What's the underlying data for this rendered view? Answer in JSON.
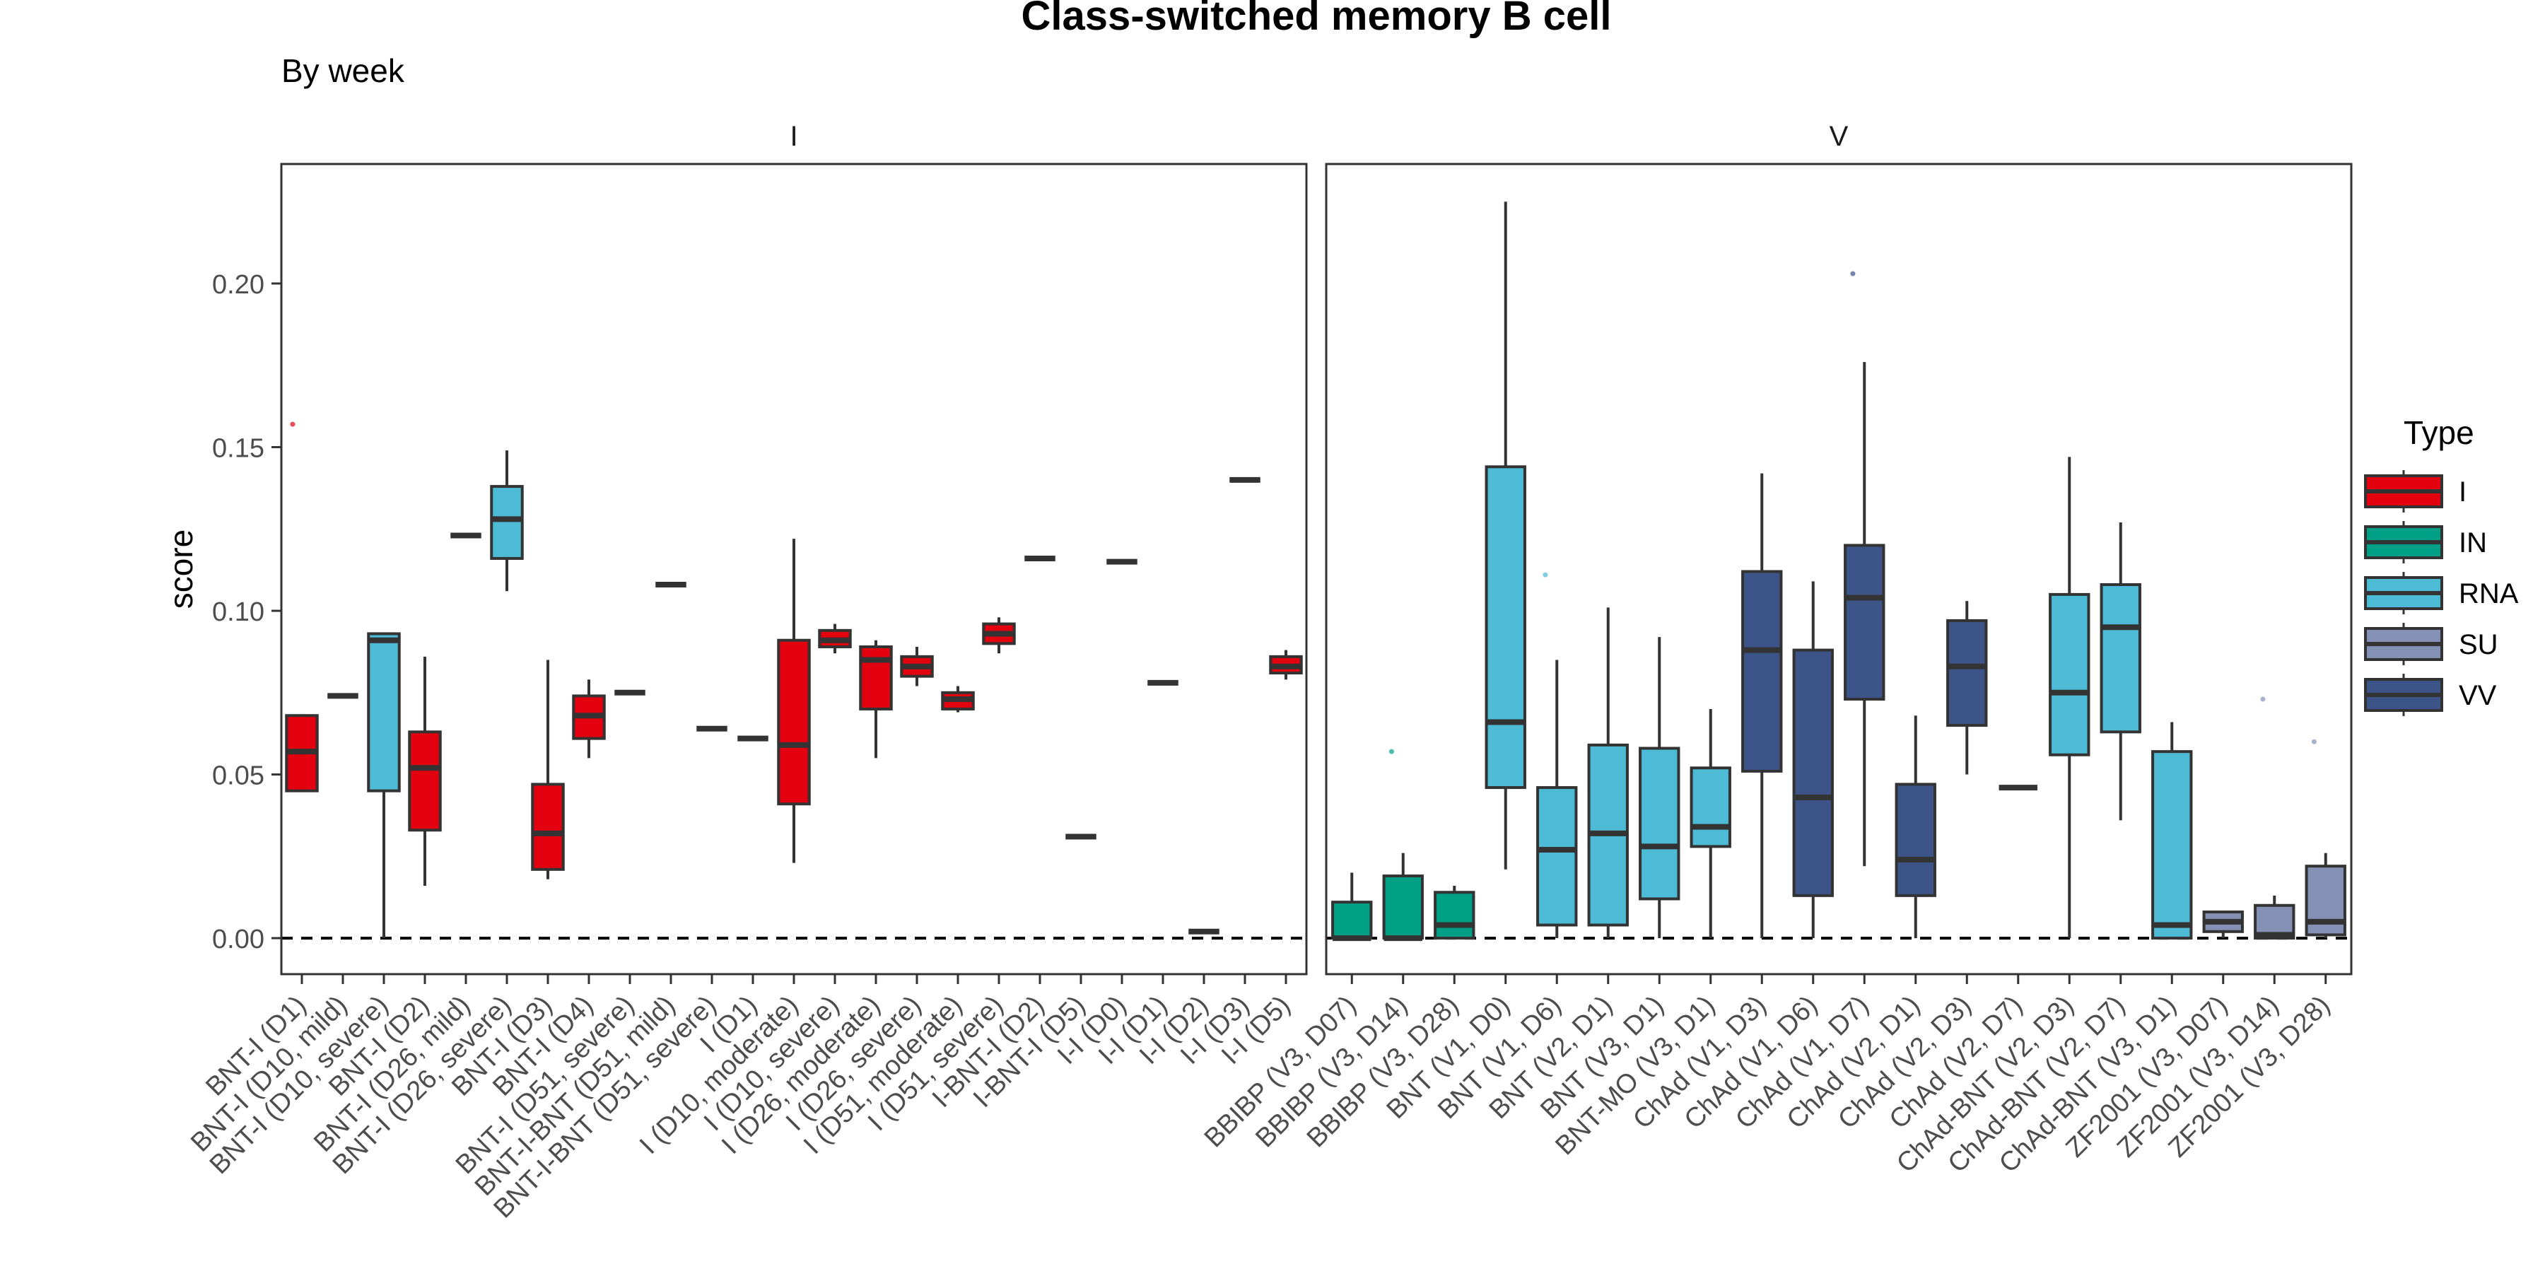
{
  "chart_data": {
    "type": "box",
    "title": "Class-switched memory B cell",
    "subtitle": "By week",
    "ylabel": "score",
    "ylim": [
      -0.011,
      0.2365
    ],
    "yticks": [
      0.0,
      0.05,
      0.1,
      0.15,
      0.2
    ],
    "ytick_labels": [
      "0.00",
      "0.05",
      "0.10",
      "0.15",
      "0.20"
    ],
    "reference_line": 0.0,
    "legend": {
      "title": "Type",
      "position": "right",
      "entries": [
        {
          "label": "I",
          "color": "#e3000f"
        },
        {
          "label": "IN",
          "color": "#00a087"
        },
        {
          "label": "RNA",
          "color": "#4dbbd5"
        },
        {
          "label": "SU",
          "color": "#8491b4"
        },
        {
          "label": "VV",
          "color": "#3c5488"
        }
      ]
    },
    "panels": [
      {
        "strip": "I",
        "groups": [
          {
            "label": "BNT-I (D1)",
            "type": "I",
            "lw": 0.045,
            "q1": 0.045,
            "med": 0.057,
            "q3": 0.068,
            "uw": 0.068,
            "outliers": [
              0.157
            ]
          },
          {
            "label": "BNT-I (D10, mild)",
            "type": "I",
            "lw": 0.074,
            "q1": 0.074,
            "med": 0.074,
            "q3": 0.074,
            "uw": 0.074,
            "outliers": []
          },
          {
            "label": "BNT-I (D10, severe)",
            "type": "RNA",
            "lw": 0.0,
            "q1": 0.045,
            "med": 0.091,
            "q3": 0.093,
            "uw": 0.093,
            "outliers": []
          },
          {
            "label": "BNT-I (D2)",
            "type": "I",
            "lw": 0.016,
            "q1": 0.033,
            "med": 0.052,
            "q3": 0.063,
            "uw": 0.086,
            "outliers": []
          },
          {
            "label": "BNT-I (D26, mild)",
            "type": "I",
            "lw": 0.123,
            "q1": 0.123,
            "med": 0.123,
            "q3": 0.123,
            "uw": 0.123,
            "outliers": []
          },
          {
            "label": "BNT-I (D26, severe)",
            "type": "RNA",
            "lw": 0.106,
            "q1": 0.116,
            "med": 0.128,
            "q3": 0.138,
            "uw": 0.149,
            "outliers": []
          },
          {
            "label": "BNT-I (D3)",
            "type": "I",
            "lw": 0.018,
            "q1": 0.021,
            "med": 0.032,
            "q3": 0.047,
            "uw": 0.085,
            "outliers": []
          },
          {
            "label": "BNT-I (D4)",
            "type": "I",
            "lw": 0.055,
            "q1": 0.061,
            "med": 0.068,
            "q3": 0.074,
            "uw": 0.079,
            "outliers": []
          },
          {
            "label": "BNT-I (D51, severe)",
            "type": "I",
            "lw": 0.075,
            "q1": 0.075,
            "med": 0.075,
            "q3": 0.075,
            "uw": 0.075,
            "outliers": []
          },
          {
            "label": "BNT-I-BNT (D51, mild)",
            "type": "I",
            "lw": 0.108,
            "q1": 0.108,
            "med": 0.108,
            "q3": 0.108,
            "uw": 0.108,
            "outliers": []
          },
          {
            "label": "BNT-I-BNT (D51, severe)",
            "type": "I",
            "lw": 0.064,
            "q1": 0.064,
            "med": 0.064,
            "q3": 0.064,
            "uw": 0.064,
            "outliers": []
          },
          {
            "label": "I (D1)",
            "type": "I",
            "lw": 0.061,
            "q1": 0.061,
            "med": 0.061,
            "q3": 0.061,
            "uw": 0.061,
            "outliers": []
          },
          {
            "label": "I (D10, moderate)",
            "type": "I",
            "lw": 0.023,
            "q1": 0.041,
            "med": 0.059,
            "q3": 0.091,
            "uw": 0.122,
            "outliers": []
          },
          {
            "label": "I (D10, severe)",
            "type": "I",
            "lw": 0.087,
            "q1": 0.089,
            "med": 0.091,
            "q3": 0.094,
            "uw": 0.096,
            "outliers": []
          },
          {
            "label": "I (D26, moderate)",
            "type": "I",
            "lw": 0.055,
            "q1": 0.07,
            "med": 0.085,
            "q3": 0.089,
            "uw": 0.091,
            "outliers": []
          },
          {
            "label": "I (D26, severe)",
            "type": "I",
            "lw": 0.077,
            "q1": 0.08,
            "med": 0.083,
            "q3": 0.086,
            "uw": 0.089,
            "outliers": []
          },
          {
            "label": "I (D51, moderate)",
            "type": "I",
            "lw": 0.069,
            "q1": 0.07,
            "med": 0.073,
            "q3": 0.075,
            "uw": 0.077,
            "outliers": []
          },
          {
            "label": "I (D51, severe)",
            "type": "I",
            "lw": 0.087,
            "q1": 0.09,
            "med": 0.093,
            "q3": 0.096,
            "uw": 0.098,
            "outliers": []
          },
          {
            "label": "I-BNT-I (D2)",
            "type": "I",
            "lw": 0.116,
            "q1": 0.116,
            "med": 0.116,
            "q3": 0.116,
            "uw": 0.116,
            "outliers": []
          },
          {
            "label": "I-BNT-I (D5)",
            "type": "I",
            "lw": 0.031,
            "q1": 0.031,
            "med": 0.031,
            "q3": 0.031,
            "uw": 0.031,
            "outliers": []
          },
          {
            "label": "I-I (D0)",
            "type": "I",
            "lw": 0.115,
            "q1": 0.115,
            "med": 0.115,
            "q3": 0.115,
            "uw": 0.115,
            "outliers": []
          },
          {
            "label": "I-I (D1)",
            "type": "I",
            "lw": 0.078,
            "q1": 0.078,
            "med": 0.078,
            "q3": 0.078,
            "uw": 0.078,
            "outliers": []
          },
          {
            "label": "I-I (D2)",
            "type": "I",
            "lw": 0.002,
            "q1": 0.002,
            "med": 0.002,
            "q3": 0.002,
            "uw": 0.002,
            "outliers": []
          },
          {
            "label": "I-I (D3)",
            "type": "I",
            "lw": 0.14,
            "q1": 0.14,
            "med": 0.14,
            "q3": 0.14,
            "uw": 0.14,
            "outliers": []
          },
          {
            "label": "I-I (D5)",
            "type": "I",
            "lw": 0.079,
            "q1": 0.081,
            "med": 0.083,
            "q3": 0.086,
            "uw": 0.088,
            "outliers": []
          }
        ]
      },
      {
        "strip": "V",
        "groups": [
          {
            "label": "BBIBP (V3, D07)",
            "type": "IN",
            "lw": 0.0,
            "q1": 0.0,
            "med": 0.0,
            "q3": 0.011,
            "uw": 0.02,
            "outliers": []
          },
          {
            "label": "BBIBP (V3, D14)",
            "type": "IN",
            "lw": 0.0,
            "q1": 0.0,
            "med": 0.0,
            "q3": 0.019,
            "uw": 0.026,
            "outliers": [
              0.057
            ]
          },
          {
            "label": "BBIBP (V3, D28)",
            "type": "IN",
            "lw": 0.0,
            "q1": 0.0,
            "med": 0.004,
            "q3": 0.014,
            "uw": 0.016,
            "outliers": []
          },
          {
            "label": "BNT (V1, D0)",
            "type": "RNA",
            "lw": 0.021,
            "q1": 0.046,
            "med": 0.066,
            "q3": 0.144,
            "uw": 0.225,
            "outliers": []
          },
          {
            "label": "BNT (V1, D6)",
            "type": "RNA",
            "lw": 0.0,
            "q1": 0.004,
            "med": 0.027,
            "q3": 0.046,
            "uw": 0.085,
            "outliers": [
              0.111
            ]
          },
          {
            "label": "BNT (V2, D1)",
            "type": "RNA",
            "lw": 0.0,
            "q1": 0.004,
            "med": 0.032,
            "q3": 0.059,
            "uw": 0.101,
            "outliers": []
          },
          {
            "label": "BNT (V3, D1)",
            "type": "RNA",
            "lw": 0.0,
            "q1": 0.012,
            "med": 0.028,
            "q3": 0.058,
            "uw": 0.092,
            "outliers": []
          },
          {
            "label": "BNT-MO (V3, D1)",
            "type": "RNA",
            "lw": 0.0,
            "q1": 0.028,
            "med": 0.034,
            "q3": 0.052,
            "uw": 0.07,
            "outliers": []
          },
          {
            "label": "ChAd (V1, D3)",
            "type": "VV",
            "lw": 0.0,
            "q1": 0.051,
            "med": 0.088,
            "q3": 0.112,
            "uw": 0.142,
            "outliers": []
          },
          {
            "label": "ChAd (V1, D6)",
            "type": "VV",
            "lw": 0.0,
            "q1": 0.013,
            "med": 0.043,
            "q3": 0.088,
            "uw": 0.109,
            "outliers": []
          },
          {
            "label": "ChAd (V1, D7)",
            "type": "VV",
            "lw": 0.022,
            "q1": 0.073,
            "med": 0.104,
            "q3": 0.12,
            "uw": 0.176,
            "outliers": [
              0.203
            ]
          },
          {
            "label": "ChAd (V2, D1)",
            "type": "VV",
            "lw": 0.0,
            "q1": 0.013,
            "med": 0.024,
            "q3": 0.047,
            "uw": 0.068,
            "outliers": []
          },
          {
            "label": "ChAd (V2, D3)",
            "type": "VV",
            "lw": 0.05,
            "q1": 0.065,
            "med": 0.083,
            "q3": 0.097,
            "uw": 0.103,
            "outliers": []
          },
          {
            "label": "ChAd (V2, D7)",
            "type": "VV",
            "lw": 0.046,
            "q1": 0.046,
            "med": 0.046,
            "q3": 0.046,
            "uw": 0.046,
            "outliers": []
          },
          {
            "label": "ChAd-BNT (V2, D3)",
            "type": "RNA",
            "lw": 0.0,
            "q1": 0.056,
            "med": 0.075,
            "q3": 0.105,
            "uw": 0.147,
            "outliers": []
          },
          {
            "label": "ChAd-BNT (V2, D7)",
            "type": "RNA",
            "lw": 0.036,
            "q1": 0.063,
            "med": 0.095,
            "q3": 0.108,
            "uw": 0.127,
            "outliers": []
          },
          {
            "label": "ChAd-BNT (V3, D1)",
            "type": "RNA",
            "lw": 0.0,
            "q1": 0.0,
            "med": 0.004,
            "q3": 0.057,
            "uw": 0.066,
            "outliers": []
          },
          {
            "label": "ZF2001 (V3, D07)",
            "type": "SU",
            "lw": 0.0,
            "q1": 0.002,
            "med": 0.005,
            "q3": 0.008,
            "uw": 0.008,
            "outliers": []
          },
          {
            "label": "ZF2001 (V3, D14)",
            "type": "SU",
            "lw": 0.0,
            "q1": 0.0,
            "med": 0.001,
            "q3": 0.01,
            "uw": 0.013,
            "outliers": [
              0.073
            ]
          },
          {
            "label": "ZF2001 (V3, D28)",
            "type": "SU",
            "lw": 0.0,
            "q1": 0.001,
            "med": 0.005,
            "q3": 0.022,
            "uw": 0.026,
            "outliers": [
              0.06
            ]
          }
        ]
      }
    ]
  }
}
